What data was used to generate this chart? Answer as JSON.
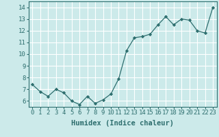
{
  "x": [
    0,
    1,
    2,
    3,
    4,
    5,
    6,
    7,
    8,
    9,
    10,
    11,
    12,
    13,
    14,
    15,
    16,
    17,
    18,
    19,
    20,
    21,
    22,
    23
  ],
  "y": [
    7.4,
    6.8,
    6.4,
    7.0,
    6.7,
    6.0,
    5.7,
    6.4,
    5.8,
    6.1,
    6.6,
    7.9,
    10.3,
    11.4,
    11.5,
    11.7,
    12.5,
    13.2,
    12.5,
    13.0,
    12.9,
    12.0,
    11.8,
    14.0
  ],
  "line_color": "#2d6e6e",
  "marker": "D",
  "marker_size": 2.2,
  "bg_color": "#cceaea",
  "grid_color": "#ffffff",
  "xlabel": "Humidex (Indice chaleur)",
  "xlabel_fontsize": 7.5,
  "yticks": [
    6,
    7,
    8,
    9,
    10,
    11,
    12,
    13,
    14
  ],
  "xlim": [
    -0.5,
    23.5
  ],
  "ylim": [
    5.5,
    14.5
  ],
  "tick_fontsize": 6.5,
  "linewidth": 0.9
}
